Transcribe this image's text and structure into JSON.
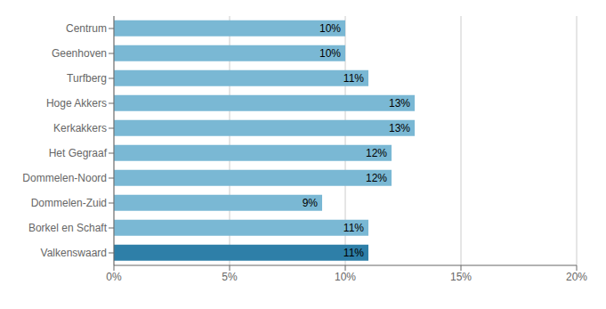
{
  "chart_data": {
    "type": "bar",
    "orientation": "horizontal",
    "categories": [
      "Centrum",
      "Geenhoven",
      "Turfberg",
      "Hoge Akkers",
      "Kerkakkers",
      "Het Gegraaf",
      "Dommelen-Noord",
      "Dommelen-Zuid",
      "Borkel en Schaft",
      "Valkenswaard"
    ],
    "values": [
      10,
      10,
      11,
      13,
      13,
      12,
      12,
      9,
      11,
      11
    ],
    "value_labels": [
      "10%",
      "10%",
      "11%",
      "13%",
      "13%",
      "12%",
      "12%",
      "9%",
      "11%",
      "11%"
    ],
    "data_labels": true,
    "colors": [
      "#7ab8d4",
      "#7ab8d4",
      "#7ab8d4",
      "#7ab8d4",
      "#7ab8d4",
      "#7ab8d4",
      "#7ab8d4",
      "#7ab8d4",
      "#7ab8d4",
      "#2e7fa8"
    ],
    "xlim": [
      0,
      20
    ],
    "xticks": [
      {
        "value": 0,
        "label": "0%"
      },
      {
        "value": 5,
        "label": "5%"
      },
      {
        "value": 10,
        "label": "10%"
      },
      {
        "value": 15,
        "label": "15%"
      },
      {
        "value": 20,
        "label": "20%"
      }
    ],
    "grid": true
  }
}
